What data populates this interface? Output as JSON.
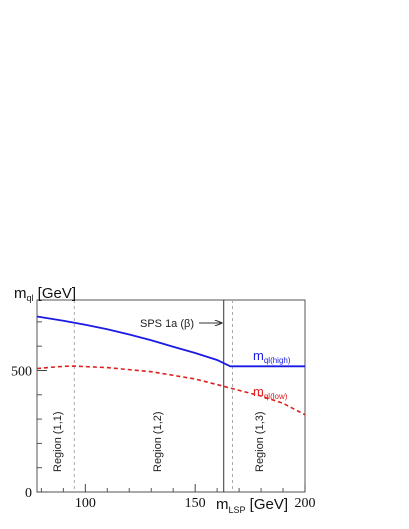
{
  "chart_data": {
    "type": "line",
    "ylabel": {
      "main": "m",
      "sub": "ql",
      "unit": " [GeV]"
    },
    "xlabel": {
      "main": "m",
      "sub": "LSP",
      "unit": " [GeV]"
    },
    "xlim": [
      78,
      200
    ],
    "ylim": [
      0,
      790
    ],
    "x_ticks": [
      100,
      150,
      200
    ],
    "y_ticks": [
      0,
      500
    ],
    "grid": false,
    "series": [
      {
        "name": {
          "main": "m",
          "sub": "ql(high)"
        },
        "color": "#1a1ae6",
        "style": "solid",
        "x": [
          78,
          90,
          100,
          110,
          120,
          130,
          140,
          150,
          160,
          166,
          180,
          200
        ],
        "y": [
          722,
          705,
          688,
          670,
          648,
          624,
          598,
          572,
          543,
          517,
          517,
          517
        ]
      },
      {
        "name": {
          "main": "m",
          "sub": "ql(low)"
        },
        "color": "#e01e1e",
        "style": "dashed",
        "x": [
          78,
          90,
          95,
          110,
          130,
          150,
          160,
          170,
          180,
          190,
          200
        ],
        "y": [
          508,
          517,
          518,
          512,
          495,
          465,
          442,
          418,
          395,
          365,
          318
        ]
      }
    ],
    "vlines": [
      {
        "x": 95,
        "style": "dotted"
      },
      {
        "x": 163,
        "style": "solid"
      },
      {
        "x": 167,
        "style": "dotted"
      }
    ],
    "annotations": [
      {
        "text": "SPS 1a (β)",
        "arrow_to_x": 163
      },
      {
        "text": "Region (1,1)"
      },
      {
        "text": "Region (1,2)"
      },
      {
        "text": "Region (1,3)"
      }
    ]
  }
}
